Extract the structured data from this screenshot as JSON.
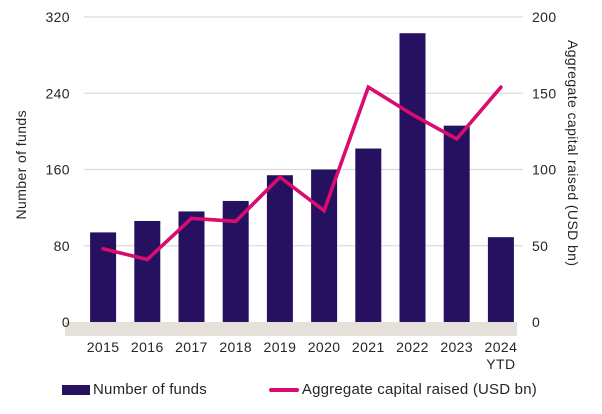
{
  "colors": {
    "bar": "#251160",
    "line": "#D90C6F",
    "grid": "#DBDBDB",
    "baseline_strip": "#E5E1DA",
    "text": "#262626",
    "background": "#FFFFFF"
  },
  "chart_data": {
    "type": "combo",
    "categories": [
      "2015",
      "2016",
      "2017",
      "2018",
      "2019",
      "2020",
      "2021",
      "2022",
      "2023",
      "2024 YTD"
    ],
    "series": [
      {
        "name": "Number of funds",
        "type": "bar",
        "axis": "left",
        "color": "#251160",
        "values": [
          94,
          106,
          116,
          127,
          154,
          160,
          182,
          303,
          206,
          89
        ]
      },
      {
        "name": "Aggregate capital raised (USD bn)",
        "type": "line",
        "axis": "right",
        "color": "#D90C6F",
        "values": [
          48,
          41,
          68,
          66,
          95,
          73,
          154,
          136,
          120,
          154
        ]
      }
    ],
    "y_left": {
      "label": "Number of funds",
      "min": 0,
      "max": 320,
      "ticks": [
        0,
        80,
        160,
        240,
        320
      ]
    },
    "y_right": {
      "label": "Aggregate capital raised (USD bn)",
      "min": 0,
      "max": 200,
      "ticks": [
        0,
        50,
        100,
        150,
        200
      ]
    },
    "grid": true,
    "legend_position": "bottom"
  },
  "legend": {
    "items": [
      {
        "label": "Number of funds",
        "swatch": "bar"
      },
      {
        "label": "Aggregate capital raised (USD bn)",
        "swatch": "line"
      }
    ]
  }
}
